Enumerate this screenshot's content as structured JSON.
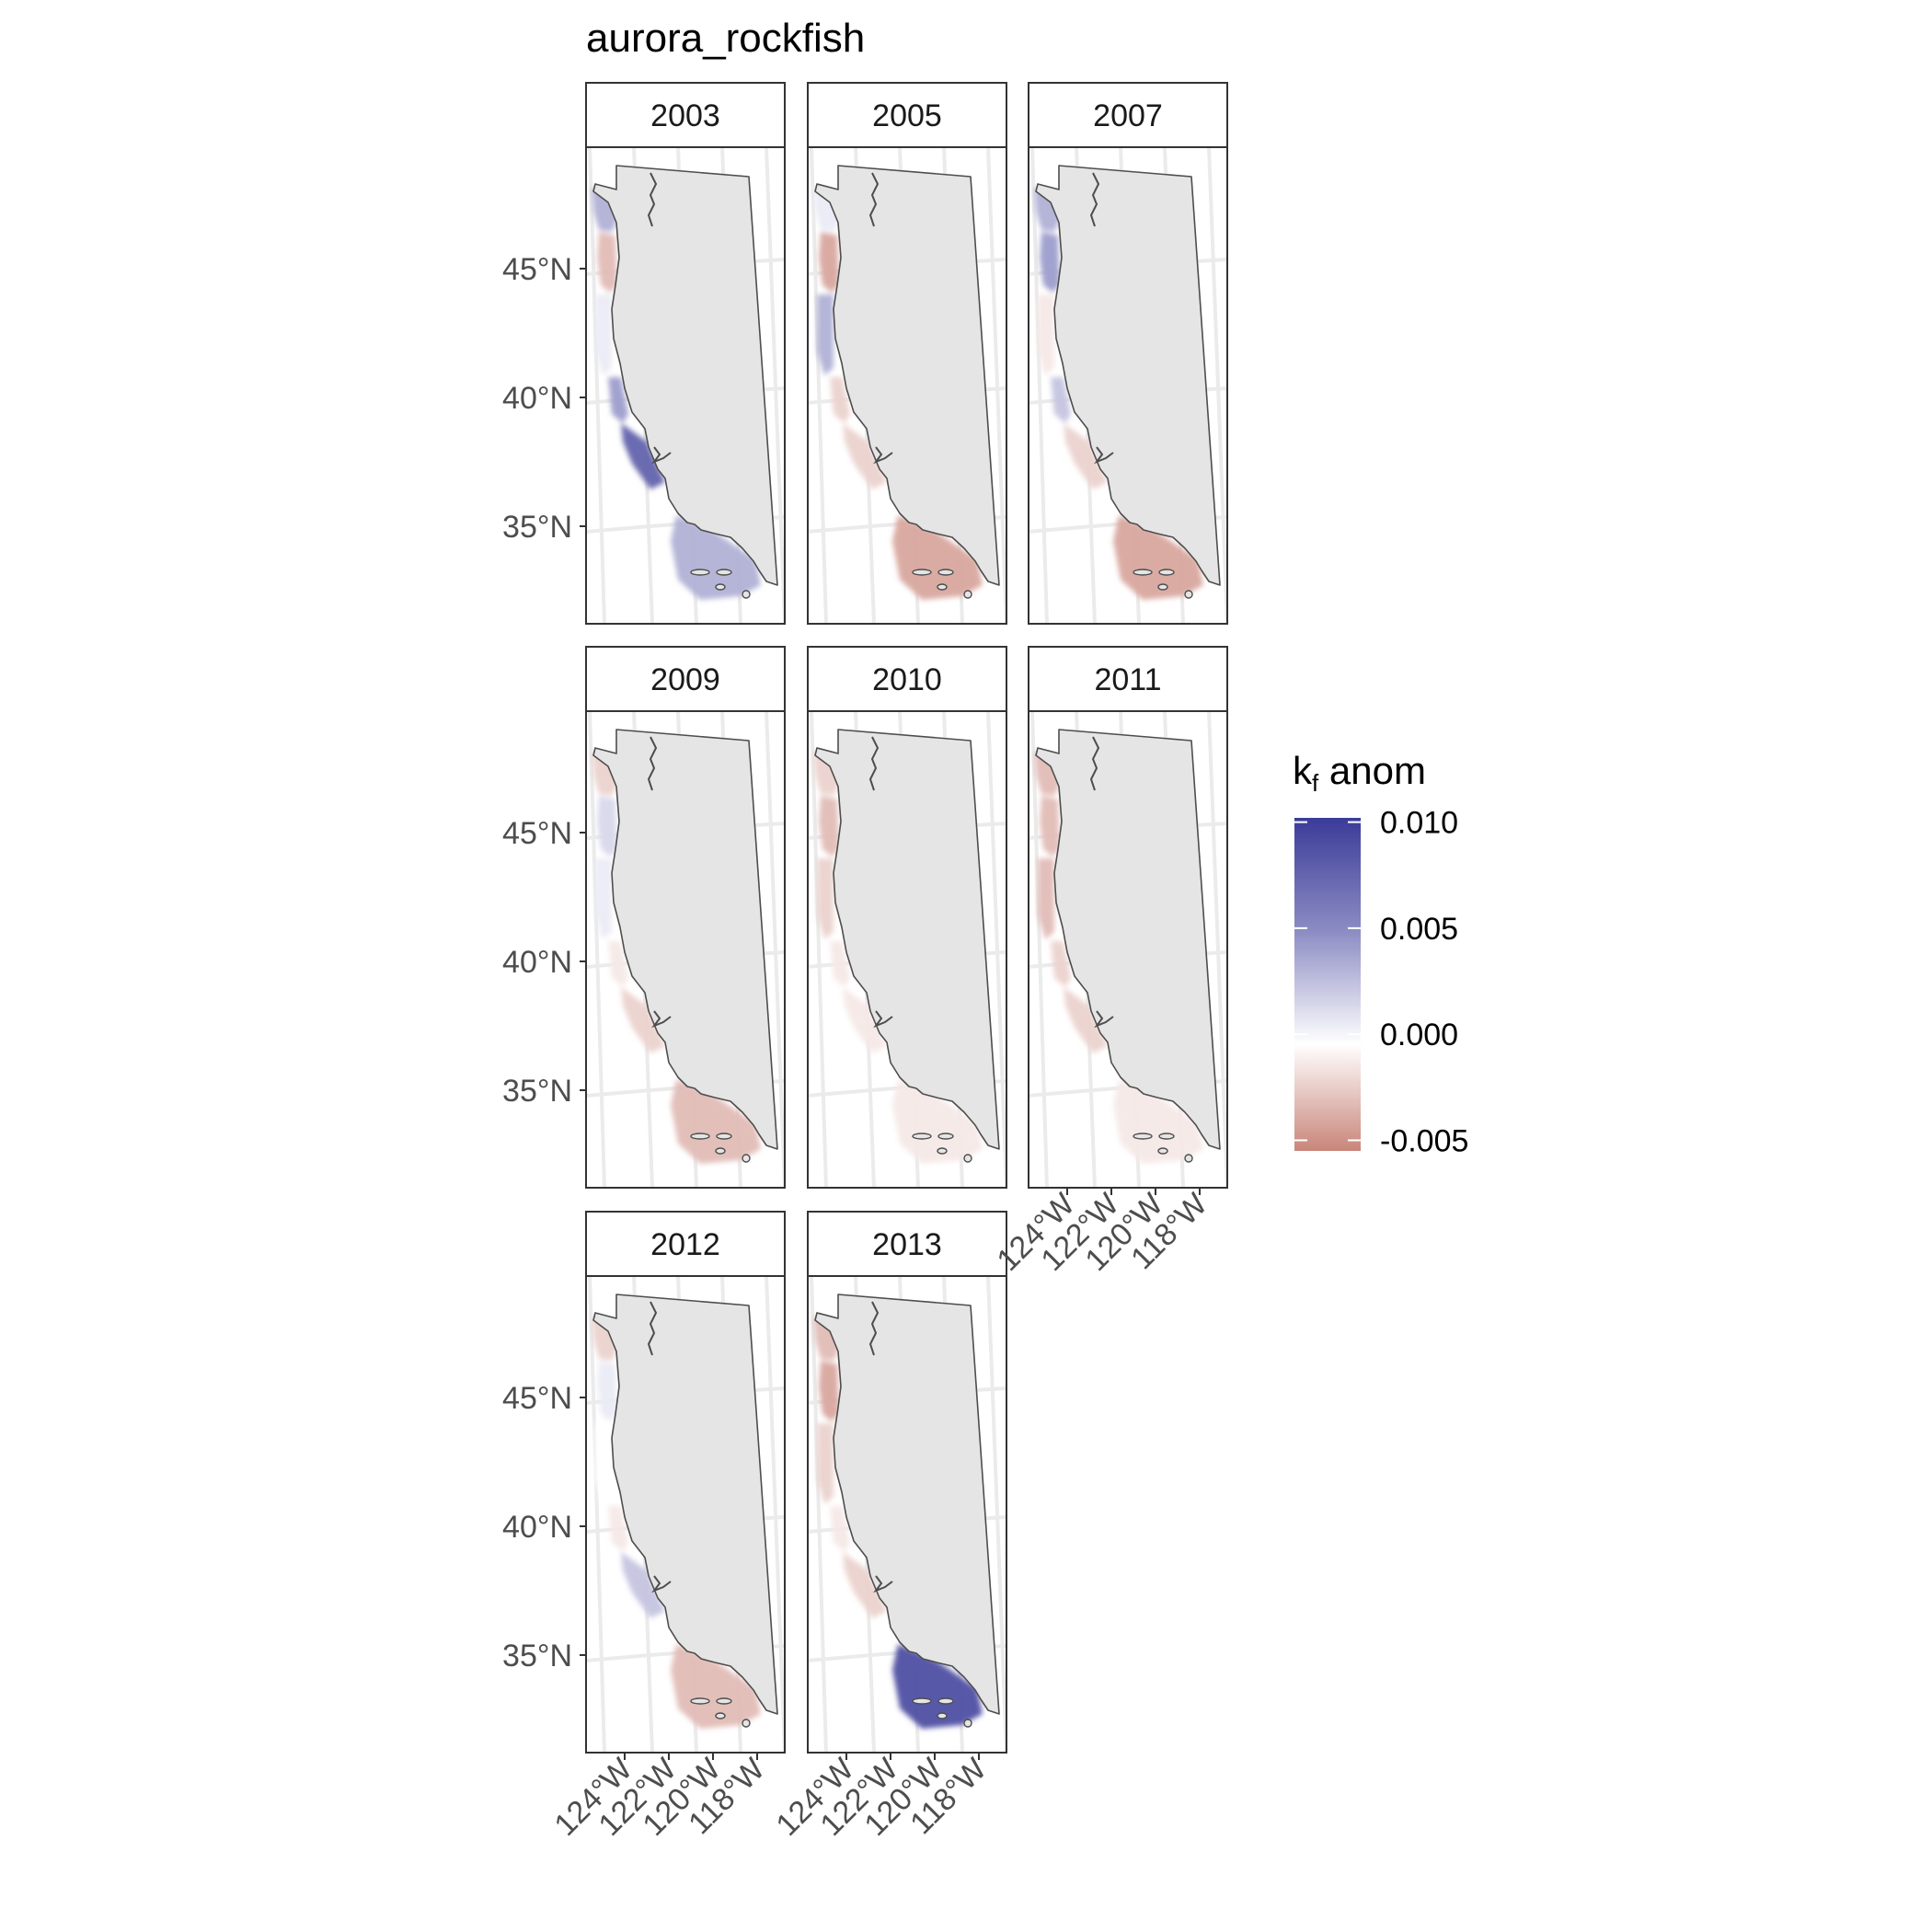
{
  "title": "aurora_rockfish",
  "legend": {
    "title_main": "k",
    "title_sub": "f",
    "title_rest": " anom",
    "labels": [
      "0.010",
      "0.005",
      "0.000",
      "-0.005"
    ],
    "values": [
      0.01,
      0.005,
      0.0,
      -0.005
    ],
    "range": [
      -0.0055,
      0.0102
    ],
    "colors": {
      "high": "#3b3b99",
      "mid": "#ffffff",
      "low": "#c9857a"
    }
  },
  "axes": {
    "lat_labels": [
      "45°N",
      "40°N",
      "35°N"
    ],
    "lon_labels": [
      "124°W",
      "122°W",
      "120°W",
      "118°W"
    ]
  },
  "colors": {
    "land": "#e5e5e5",
    "outline": "#4d4d4d",
    "grid": "#ebebeb",
    "strip_bg": "#ffffff",
    "frame": "#333333"
  },
  "panels": [
    {
      "year": "2003",
      "patches": [
        {
          "id": "wa-coast",
          "value": 0.004
        },
        {
          "id": "or-north",
          "value": -0.003
        },
        {
          "id": "or-south",
          "value": 0.001
        },
        {
          "id": "ca-north",
          "value": 0.005
        },
        {
          "id": "ca-central",
          "value": 0.008
        },
        {
          "id": "ca-bight",
          "value": 0.004
        }
      ]
    },
    {
      "year": "2005",
      "patches": [
        {
          "id": "wa-coast",
          "value": 0.001
        },
        {
          "id": "or-north",
          "value": -0.004
        },
        {
          "id": "or-south",
          "value": 0.004
        },
        {
          "id": "ca-north",
          "value": -0.002
        },
        {
          "id": "ca-central",
          "value": -0.002
        },
        {
          "id": "ca-bight",
          "value": -0.004
        }
      ]
    },
    {
      "year": "2007",
      "patches": [
        {
          "id": "wa-coast",
          "value": 0.004
        },
        {
          "id": "or-north",
          "value": 0.005
        },
        {
          "id": "or-south",
          "value": -0.001
        },
        {
          "id": "ca-north",
          "value": 0.003
        },
        {
          "id": "ca-central",
          "value": -0.002
        },
        {
          "id": "ca-bight",
          "value": -0.004
        }
      ]
    },
    {
      "year": "2009",
      "patches": [
        {
          "id": "wa-coast",
          "value": -0.002
        },
        {
          "id": "or-north",
          "value": 0.002
        },
        {
          "id": "or-south",
          "value": 0.001
        },
        {
          "id": "ca-north",
          "value": -0.001
        },
        {
          "id": "ca-central",
          "value": -0.002
        },
        {
          "id": "ca-bight",
          "value": -0.003
        }
      ]
    },
    {
      "year": "2010",
      "patches": [
        {
          "id": "wa-coast",
          "value": -0.002
        },
        {
          "id": "or-north",
          "value": -0.003
        },
        {
          "id": "or-south",
          "value": -0.002
        },
        {
          "id": "ca-north",
          "value": -0.001
        },
        {
          "id": "ca-central",
          "value": -0.001
        },
        {
          "id": "ca-bight",
          "value": -0.001
        }
      ]
    },
    {
      "year": "2011",
      "patches": [
        {
          "id": "wa-coast",
          "value": -0.003
        },
        {
          "id": "or-north",
          "value": -0.003
        },
        {
          "id": "or-south",
          "value": -0.003
        },
        {
          "id": "ca-north",
          "value": -0.002
        },
        {
          "id": "ca-central",
          "value": -0.002
        },
        {
          "id": "ca-bight",
          "value": -0.001
        }
      ]
    },
    {
      "year": "2012",
      "patches": [
        {
          "id": "wa-coast",
          "value": -0.002
        },
        {
          "id": "or-north",
          "value": 0.001
        },
        {
          "id": "or-south",
          "value": 0.0
        },
        {
          "id": "ca-north",
          "value": -0.001
        },
        {
          "id": "ca-central",
          "value": 0.003
        },
        {
          "id": "ca-bight",
          "value": -0.003
        }
      ]
    },
    {
      "year": "2013",
      "patches": [
        {
          "id": "wa-coast",
          "value": -0.003
        },
        {
          "id": "or-north",
          "value": -0.004
        },
        {
          "id": "or-south",
          "value": -0.002
        },
        {
          "id": "ca-north",
          "value": -0.001
        },
        {
          "id": "ca-central",
          "value": -0.002
        },
        {
          "id": "ca-bight",
          "value": 0.009
        }
      ]
    }
  ]
}
